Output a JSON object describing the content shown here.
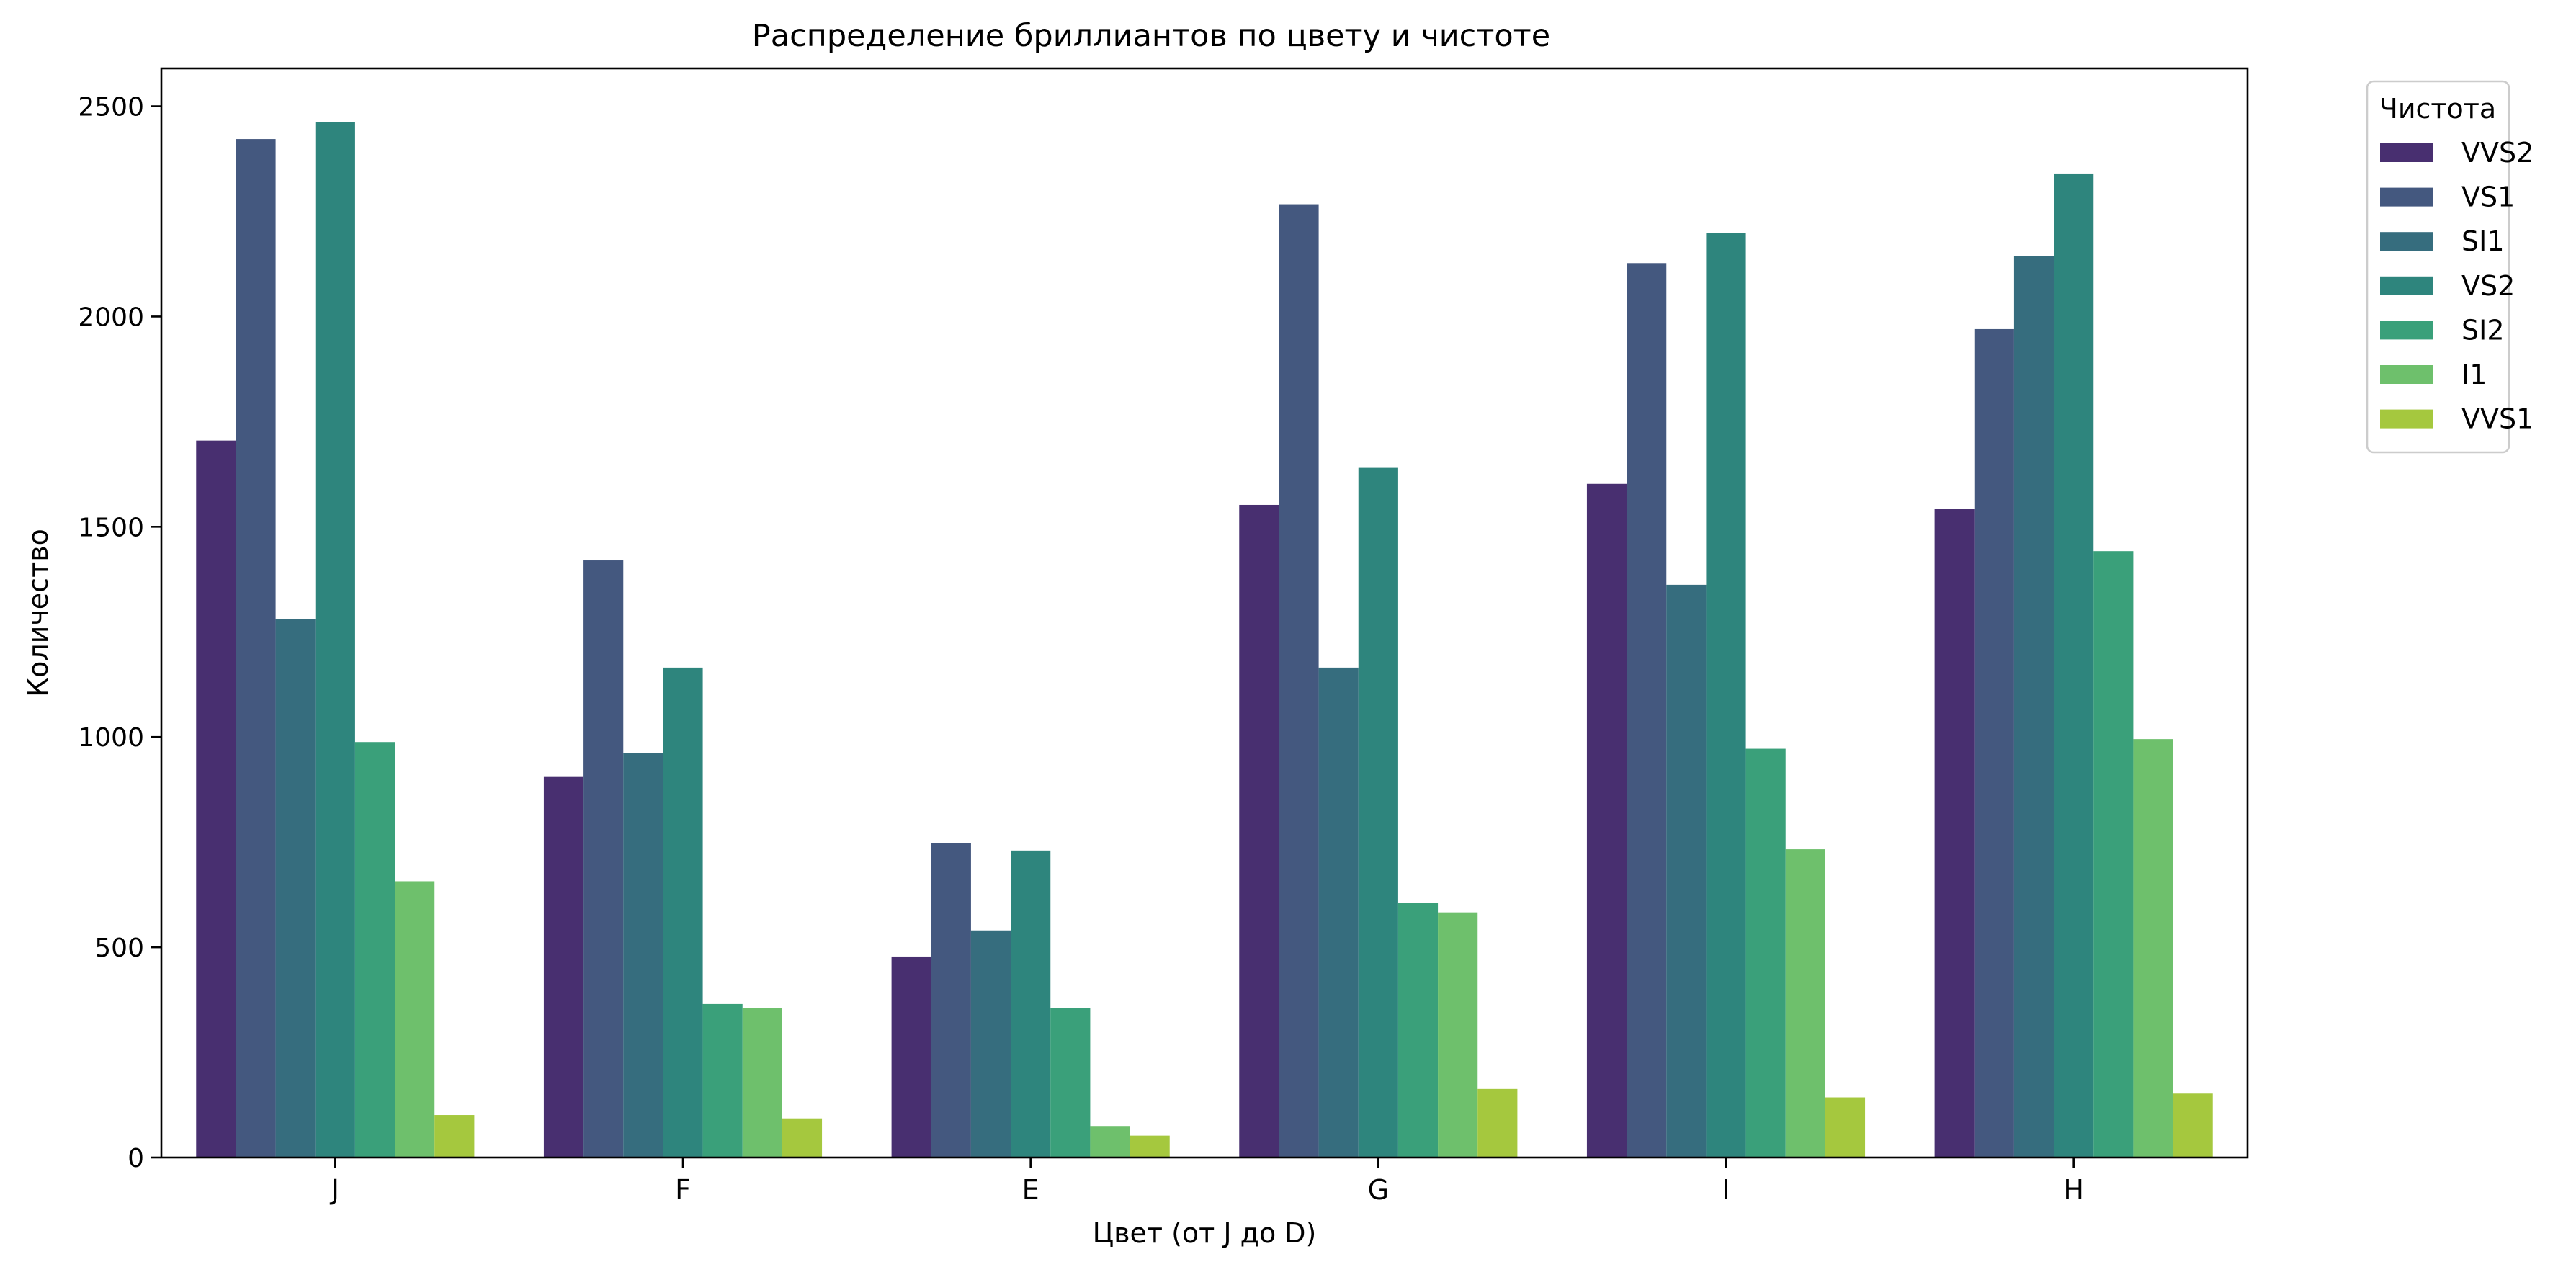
{
  "chart_data": {
    "type": "bar",
    "title": "Распределение бриллиантов по цвету и чистоте",
    "xlabel": "Цвет (от J до D)",
    "ylabel": "Количество",
    "categories": [
      "J",
      "F",
      "E",
      "G",
      "I",
      "H"
    ],
    "ylim": [
      0,
      2590
    ],
    "yticks": [
      0,
      500,
      1000,
      1500,
      2000,
      2500
    ],
    "grid": false,
    "legend": {
      "title": "Чистота",
      "placement": "outside-top-right"
    },
    "series": [
      {
        "name": "VVS2",
        "color": "#482f70",
        "values": [
          1705,
          905,
          478,
          1552,
          1602,
          1543
        ]
      },
      {
        "name": "VS1",
        "color": "#44587f",
        "values": [
          2422,
          1420,
          748,
          2267,
          2127,
          1970
        ]
      },
      {
        "name": "SI1",
        "color": "#366d7e",
        "values": [
          1281,
          962,
          540,
          1165,
          1362,
          2143
        ]
      },
      {
        "name": "VS2",
        "color": "#2e857d",
        "values": [
          2462,
          1165,
          730,
          1640,
          2198,
          2340
        ]
      },
      {
        "name": "SI2",
        "color": "#3aa07a",
        "values": [
          988,
          365,
          355,
          605,
          972,
          1442
        ]
      },
      {
        "name": "I1",
        "color": "#6ec06c",
        "values": [
          657,
          355,
          75,
          583,
          733,
          995
        ]
      },
      {
        "name": "VVS1",
        "color": "#a5c83e",
        "values": [
          101,
          93,
          52,
          163,
          143,
          152
        ]
      }
    ]
  }
}
